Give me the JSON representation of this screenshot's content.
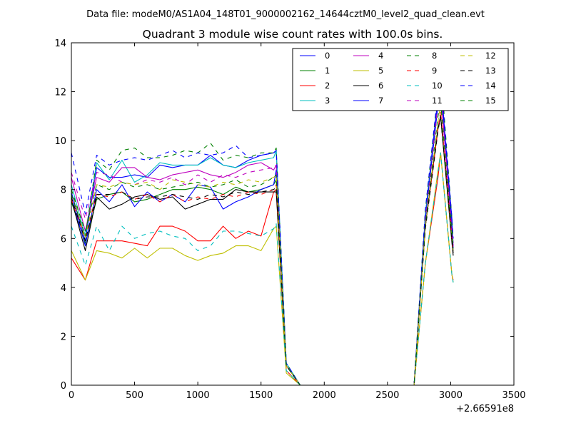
{
  "header": {
    "suptitle": "Data file: modeM0/AS1A04_148T01_9000002162_14644cztM0_level2_quad_clean.evt"
  },
  "chart_data": {
    "type": "line",
    "title": "Quadrant 3 module wise count rates with 100.0s bins.",
    "xlabel": "",
    "ylabel": "",
    "x_offset_label": "+2.66591e8",
    "xlim": [
      0,
      3500
    ],
    "ylim": [
      0,
      14
    ],
    "xticks": [
      0,
      500,
      1000,
      1500,
      2000,
      2500,
      3000,
      3500
    ],
    "yticks": [
      0,
      2,
      4,
      6,
      8,
      10,
      12,
      14
    ],
    "grid": false,
    "legend": {
      "location": "upper-right",
      "columns": 4
    },
    "x": [
      0,
      110,
      200,
      300,
      400,
      500,
      600,
      700,
      800,
      900,
      1000,
      1100,
      1200,
      1300,
      1400,
      1500,
      1600,
      1620,
      1700,
      1810,
      1900,
      2000,
      2100,
      2200,
      2300,
      2400,
      2500,
      2600,
      2710,
      2800,
      2900,
      2920,
      3010,
      3020
    ],
    "series": [
      {
        "name": "0",
        "color": "#0000ff",
        "dash": false,
        "values": [
          7.9,
          5.9,
          8.9,
          8.5,
          8.5,
          8.6,
          8.5,
          9.0,
          8.9,
          9.0,
          9.0,
          9.4,
          9.0,
          8.9,
          9.2,
          9.4,
          9.5,
          9.6,
          0.9,
          0,
          0,
          0,
          0,
          0,
          0,
          0,
          0,
          0,
          0,
          7.0,
          11.8,
          12.2,
          6.8,
          5.5
        ]
      },
      {
        "name": "1",
        "color": "#008000",
        "dash": false,
        "values": [
          7.5,
          5.8,
          7.6,
          7.8,
          7.9,
          7.5,
          7.6,
          7.8,
          8.0,
          8.0,
          8.1,
          8.0,
          7.8,
          8.1,
          7.9,
          8.0,
          8.2,
          8.4,
          0.8,
          0,
          0,
          0,
          0,
          0,
          0,
          0,
          0,
          0,
          0,
          6.5,
          10.5,
          11.0,
          6.0,
          5.5
        ]
      },
      {
        "name": "2",
        "color": "#ff0000",
        "dash": false,
        "values": [
          5.2,
          4.3,
          5.9,
          5.9,
          5.9,
          5.8,
          5.7,
          6.5,
          6.5,
          6.3,
          5.9,
          5.9,
          6.5,
          6.0,
          6.3,
          6.1,
          7.9,
          8.0,
          0.6,
          0,
          0,
          0,
          0,
          0,
          0,
          0,
          0,
          0,
          0,
          5.0,
          8.5,
          9.5,
          4.5,
          4.3
        ]
      },
      {
        "name": "3",
        "color": "#00bfbf",
        "dash": false,
        "values": [
          8.2,
          6.1,
          9.1,
          8.4,
          9.2,
          8.3,
          8.6,
          9.1,
          9.0,
          9.0,
          9.0,
          9.3,
          9.0,
          8.9,
          9.1,
          9.2,
          9.3,
          9.6,
          0.9,
          0,
          0,
          0,
          0,
          0,
          0,
          0,
          0,
          0,
          0,
          7.0,
          11.5,
          12.0,
          6.5,
          5.8
        ]
      },
      {
        "name": "4",
        "color": "#bf00bf",
        "dash": false,
        "values": [
          8.5,
          6.3,
          8.5,
          8.3,
          8.9,
          8.9,
          8.5,
          8.4,
          8.6,
          8.7,
          8.8,
          8.6,
          8.5,
          8.7,
          9.0,
          9.1,
          8.8,
          9.0,
          0.8,
          0,
          0,
          0,
          0,
          0,
          0,
          0,
          0,
          0,
          0,
          6.8,
          11.5,
          12.0,
          6.3,
          5.8
        ]
      },
      {
        "name": "5",
        "color": "#bfbf00",
        "dash": false,
        "values": [
          5.5,
          4.3,
          5.5,
          5.4,
          5.2,
          5.6,
          5.2,
          5.6,
          5.6,
          5.3,
          5.1,
          5.3,
          5.4,
          5.7,
          5.7,
          5.5,
          6.4,
          6.5,
          0.5,
          0,
          0,
          0,
          0,
          0,
          0,
          0,
          0,
          0,
          0,
          5.0,
          8.8,
          9.5,
          4.5,
          4.2
        ]
      },
      {
        "name": "6",
        "color": "#000000",
        "dash": false,
        "values": [
          7.6,
          5.5,
          7.7,
          7.2,
          7.4,
          7.7,
          7.8,
          7.6,
          7.7,
          7.2,
          7.4,
          7.6,
          7.6,
          8.0,
          7.9,
          7.9,
          7.9,
          7.9,
          0.8,
          0,
          0,
          0,
          0,
          0,
          0,
          0,
          0,
          0,
          0,
          6.5,
          10.5,
          11.0,
          5.8,
          5.3
        ]
      },
      {
        "name": "7",
        "color": "#0000ff",
        "dash": false,
        "values": [
          7.7,
          5.7,
          8.0,
          7.5,
          8.2,
          7.3,
          7.9,
          7.5,
          7.8,
          7.5,
          8.2,
          8.1,
          7.2,
          7.5,
          7.7,
          8.0,
          8.2,
          8.8,
          0.8,
          0,
          0,
          0,
          0,
          0,
          0,
          0,
          0,
          0,
          0,
          6.8,
          11.5,
          12.6,
          6.5,
          5.5
        ]
      },
      {
        "name": "8",
        "color": "#008000",
        "dash": true,
        "values": [
          7.8,
          6.1,
          9.2,
          8.8,
          9.6,
          9.7,
          9.3,
          9.3,
          9.4,
          9.6,
          9.5,
          9.9,
          9.2,
          9.4,
          9.3,
          9.5,
          9.5,
          9.7,
          0.9,
          0,
          0,
          0,
          0,
          0,
          0,
          0,
          0,
          0,
          0,
          7.2,
          12.0,
          13.0,
          6.8,
          6.0
        ]
      },
      {
        "name": "9",
        "color": "#ff0000",
        "dash": true,
        "values": [
          7.6,
          6.0,
          7.8,
          7.7,
          7.9,
          7.6,
          7.8,
          7.5,
          7.8,
          7.5,
          7.7,
          7.6,
          7.8,
          7.7,
          7.9,
          7.8,
          8.0,
          8.2,
          0.8,
          0,
          0,
          0,
          0,
          0,
          0,
          0,
          0,
          0,
          0,
          6.5,
          10.5,
          11.2,
          6.0,
          5.5
        ]
      },
      {
        "name": "10",
        "color": "#00bfbf",
        "dash": true,
        "values": [
          6.5,
          4.9,
          6.5,
          5.5,
          6.5,
          6.0,
          6.2,
          6.3,
          6.1,
          6.0,
          5.5,
          5.7,
          6.3,
          6.3,
          6.2,
          6.1,
          6.4,
          6.6,
          0.6,
          0,
          0,
          0,
          0,
          0,
          0,
          0,
          0,
          0,
          0,
          5.0,
          8.7,
          9.5,
          4.5,
          4.2
        ]
      },
      {
        "name": "11",
        "color": "#bf00bf",
        "dash": true,
        "values": [
          8.7,
          6.8,
          8.7,
          8.6,
          8.3,
          8.2,
          8.4,
          8.3,
          8.5,
          8.2,
          8.6,
          8.3,
          8.6,
          8.5,
          8.7,
          8.8,
          8.9,
          9.0,
          0.8,
          0,
          0,
          0,
          0,
          0,
          0,
          0,
          0,
          0,
          0,
          6.8,
          11.5,
          12.0,
          6.3,
          5.7
        ]
      },
      {
        "name": "12",
        "color": "#bfbf00",
        "dash": true,
        "values": [
          8.0,
          6.0,
          8.2,
          8.1,
          8.3,
          8.2,
          8.3,
          8.0,
          8.4,
          8.3,
          8.2,
          8.1,
          8.3,
          8.2,
          8.4,
          8.3,
          8.5,
          8.6,
          0.8,
          0,
          0,
          0,
          0,
          0,
          0,
          0,
          0,
          0,
          0,
          6.5,
          10.8,
          11.5,
          6.0,
          5.5
        ]
      },
      {
        "name": "13",
        "color": "#000000",
        "dash": true,
        "values": [
          7.7,
          5.9,
          7.8,
          7.8,
          7.9,
          7.6,
          7.7,
          7.7,
          7.8,
          7.7,
          7.6,
          7.8,
          7.7,
          7.9,
          7.8,
          7.9,
          8.0,
          8.1,
          0.8,
          0,
          0,
          0,
          0,
          0,
          0,
          0,
          0,
          0,
          0,
          6.4,
          10.4,
          11.0,
          6.0,
          5.4
        ]
      },
      {
        "name": "14",
        "color": "#0000ff",
        "dash": true,
        "values": [
          9.5,
          7.0,
          9.4,
          9.0,
          9.2,
          9.3,
          9.2,
          9.4,
          9.6,
          9.3,
          9.5,
          9.4,
          9.5,
          9.8,
          9.3,
          9.4,
          9.5,
          9.6,
          0.9,
          0,
          0,
          0,
          0,
          0,
          0,
          0,
          0,
          0,
          0,
          7.2,
          12.0,
          12.7,
          6.8,
          6.0
        ]
      },
      {
        "name": "15",
        "color": "#008000",
        "dash": true,
        "values": [
          8.0,
          6.3,
          8.2,
          8.0,
          8.3,
          8.1,
          8.2,
          8.0,
          8.1,
          8.2,
          8.3,
          8.1,
          8.2,
          8.4,
          8.1,
          8.2,
          8.5,
          8.6,
          0.8,
          0,
          0,
          0,
          0,
          0,
          0,
          0,
          0,
          0,
          0,
          6.6,
          11.0,
          11.6,
          6.2,
          5.6
        ]
      }
    ]
  }
}
